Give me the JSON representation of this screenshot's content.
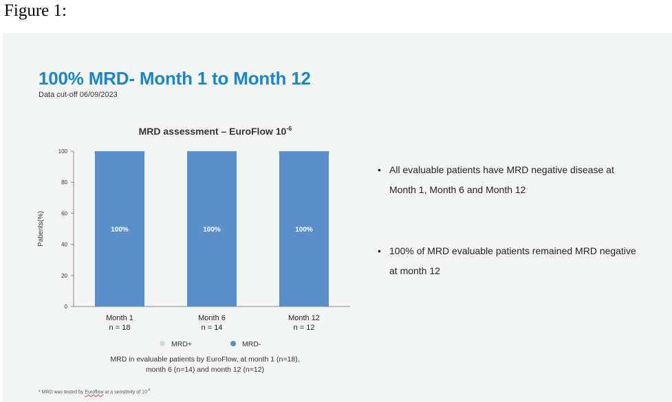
{
  "figure_label": "Figure 1:",
  "slide": {
    "title": "100% MRD- Month 1 to Month 12",
    "cutoff": "Data cut-off 06/09/2023",
    "bullets": [
      "All evaluable patients have MRD negative disease at Month 1, Month 6 and Month 12",
      "100% of MRD evaluable patients remained MRD negative at month 12"
    ],
    "footnote": {
      "prefix": "* MRD was tested by ",
      "method": "Euroflow",
      "suffix": " at a sensitivity of 10",
      "exp": "-6"
    }
  },
  "chart_data": {
    "type": "bar",
    "stacked": true,
    "title": "MRD assessment – EuroFlow 10",
    "title_sup": "-6",
    "ylabel": "Patients(%)",
    "xlabel": "",
    "ylim": [
      0,
      100
    ],
    "yticks": [
      0,
      20,
      40,
      60,
      80,
      100
    ],
    "categories": [
      "Month 1",
      "Month 6",
      "Month 12"
    ],
    "category_sublabels": [
      "n = 18",
      "n = 14",
      "n = 12"
    ],
    "series": [
      {
        "name": "MRD+",
        "values": [
          0,
          0,
          0
        ],
        "color": "#d9d9d9"
      },
      {
        "name": "MRD-",
        "values": [
          100,
          100,
          100
        ],
        "color": "#5b8fc9",
        "data_labels": [
          "100%",
          "100%",
          "100%"
        ]
      }
    ],
    "legend_placement": "bottom",
    "grid": false,
    "caption": [
      "MRD in evaluable patients by EuroFlow, at month 1 (n=18),",
      "month 6 (n=14) and month 12 (n=12)"
    ]
  }
}
